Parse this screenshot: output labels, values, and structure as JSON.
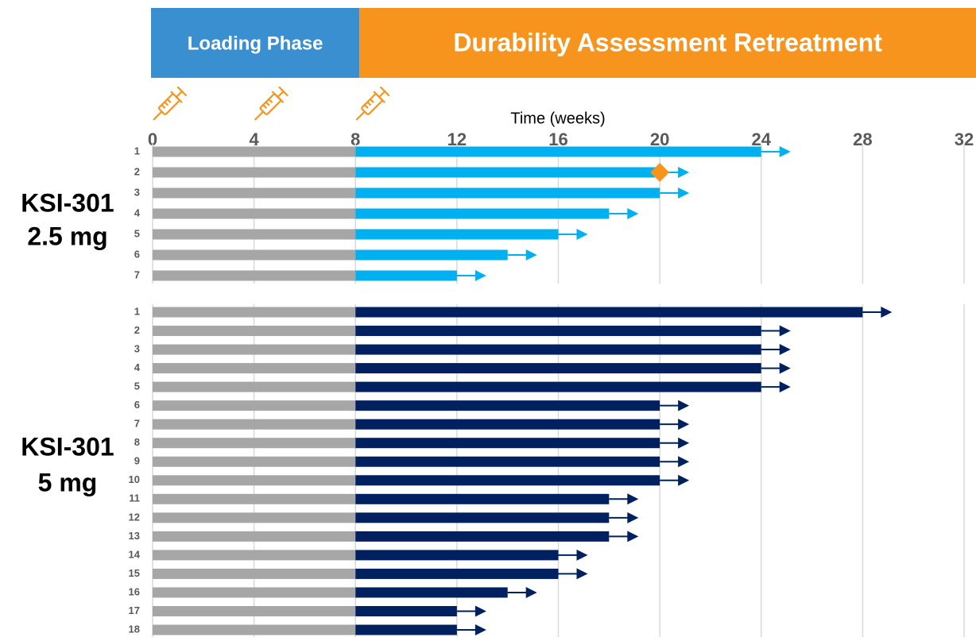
{
  "chart_data": {
    "type": "swimmer",
    "phases": [
      {
        "label": "Loading Phase",
        "color": "#3a8fd0",
        "start": 0
      },
      {
        "label": "Durability Assessment Retreatment",
        "color": "#f7941d",
        "start": 8
      }
    ],
    "xlabel": "Time (weeks)",
    "xlim": [
      0,
      32
    ],
    "xticks": [
      0,
      4,
      8,
      12,
      16,
      20,
      24,
      28,
      32
    ],
    "grid": true,
    "injections": [
      0,
      4,
      8
    ],
    "injection_color": "#f7941d",
    "groups": [
      {
        "label": [
          "KSI-301",
          "2.5 mg"
        ],
        "categories": [
          "1",
          "2",
          "3",
          "4",
          "5",
          "6",
          "7"
        ],
        "segments": [
          {
            "color": "#a6a6a6",
            "values": [
              8,
              8,
              8,
              8,
              8,
              8,
              8
            ]
          },
          {
            "color": "#00b0f0",
            "values": [
              16,
              12,
              12,
              10,
              8,
              6,
              4
            ]
          }
        ],
        "event_x": [
          null,
          20,
          null,
          null,
          null,
          null,
          null
        ],
        "event_color": "#f7941d"
      },
      {
        "label": [
          "KSI-301",
          "5 mg"
        ],
        "categories": [
          "1",
          "2",
          "3",
          "4",
          "5",
          "6",
          "7",
          "8",
          "9",
          "10",
          "11",
          "12",
          "13",
          "14",
          "15",
          "16",
          "17",
          "18"
        ],
        "segments": [
          {
            "color": "#a6a6a6",
            "values": [
              8,
              8,
              8,
              8,
              8,
              8,
              8,
              8,
              8,
              8,
              8,
              8,
              8,
              8,
              8,
              8,
              8,
              8
            ]
          },
          {
            "color": "#002060",
            "values": [
              20,
              16,
              16,
              16,
              16,
              12,
              12,
              12,
              12,
              12,
              10,
              10,
              10,
              8,
              8,
              6,
              4,
              4
            ]
          }
        ]
      }
    ]
  }
}
